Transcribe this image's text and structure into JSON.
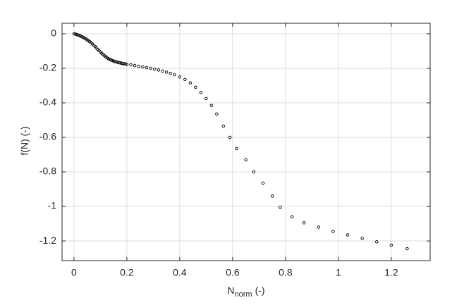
{
  "chart_data": {
    "type": "scatter",
    "xlabel": "N",
    "xlabel_sub": "norm",
    "xlabel_suffix": "(-)",
    "ylabel": "f(N) (-)",
    "xlim": [
      -0.045,
      1.347
    ],
    "ylim": [
      -1.314,
      0.061
    ],
    "xticks": [
      0,
      0.2,
      0.4,
      0.6,
      0.8,
      1,
      1.2
    ],
    "yticks": [
      0,
      -0.2,
      -0.4,
      -0.6,
      -0.8,
      -1,
      -1.2
    ],
    "grid": true,
    "color": "#000000",
    "x": [
      0,
      0.005,
      0.01,
      0.015,
      0.02,
      0.025,
      0.03,
      0.035,
      0.04,
      0.045,
      0.05,
      0.055,
      0.06,
      0.065,
      0.07,
      0.075,
      0.08,
      0.085,
      0.09,
      0.095,
      0.1,
      0.105,
      0.11,
      0.115,
      0.12,
      0.125,
      0.13,
      0.135,
      0.14,
      0.145,
      0.15,
      0.155,
      0.16,
      0.165,
      0.17,
      0.175,
      0.18,
      0.185,
      0.19,
      0.195,
      0.2,
      0.215,
      0.23,
      0.245,
      0.26,
      0.275,
      0.29,
      0.305,
      0.32,
      0.335,
      0.35,
      0.365,
      0.38,
      0.4,
      0.42,
      0.44,
      0.46,
      0.48,
      0.5,
      0.52,
      0.54,
      0.565,
      0.59,
      0.615,
      0.65,
      0.68,
      0.715,
      0.75,
      0.78,
      0.825,
      0.87,
      0.925,
      0.98,
      1.035,
      1.09,
      1.145,
      1.2,
      1.26
    ],
    "values": [
      0,
      -0.002,
      -0.004,
      -0.007,
      -0.01,
      -0.013,
      -0.017,
      -0.021,
      -0.025,
      -0.03,
      -0.035,
      -0.04,
      -0.046,
      -0.052,
      -0.059,
      -0.066,
      -0.074,
      -0.082,
      -0.09,
      -0.098,
      -0.106,
      -0.113,
      -0.12,
      -0.127,
      -0.133,
      -0.139,
      -0.144,
      -0.148,
      -0.152,
      -0.155,
      -0.158,
      -0.161,
      -0.163,
      -0.165,
      -0.167,
      -0.169,
      -0.171,
      -0.172,
      -0.174,
      -0.175,
      -0.177,
      -0.18,
      -0.184,
      -0.188,
      -0.192,
      -0.196,
      -0.2,
      -0.205,
      -0.21,
      -0.216,
      -0.222,
      -0.229,
      -0.237,
      -0.25,
      -0.265,
      -0.285,
      -0.31,
      -0.34,
      -0.375,
      -0.415,
      -0.465,
      -0.535,
      -0.6,
      -0.665,
      -0.73,
      -0.8,
      -0.865,
      -0.94,
      -1.005,
      -1.06,
      -1.095,
      -1.12,
      -1.145,
      -1.165,
      -1.185,
      -1.205,
      -1.225,
      -1.245
    ]
  }
}
